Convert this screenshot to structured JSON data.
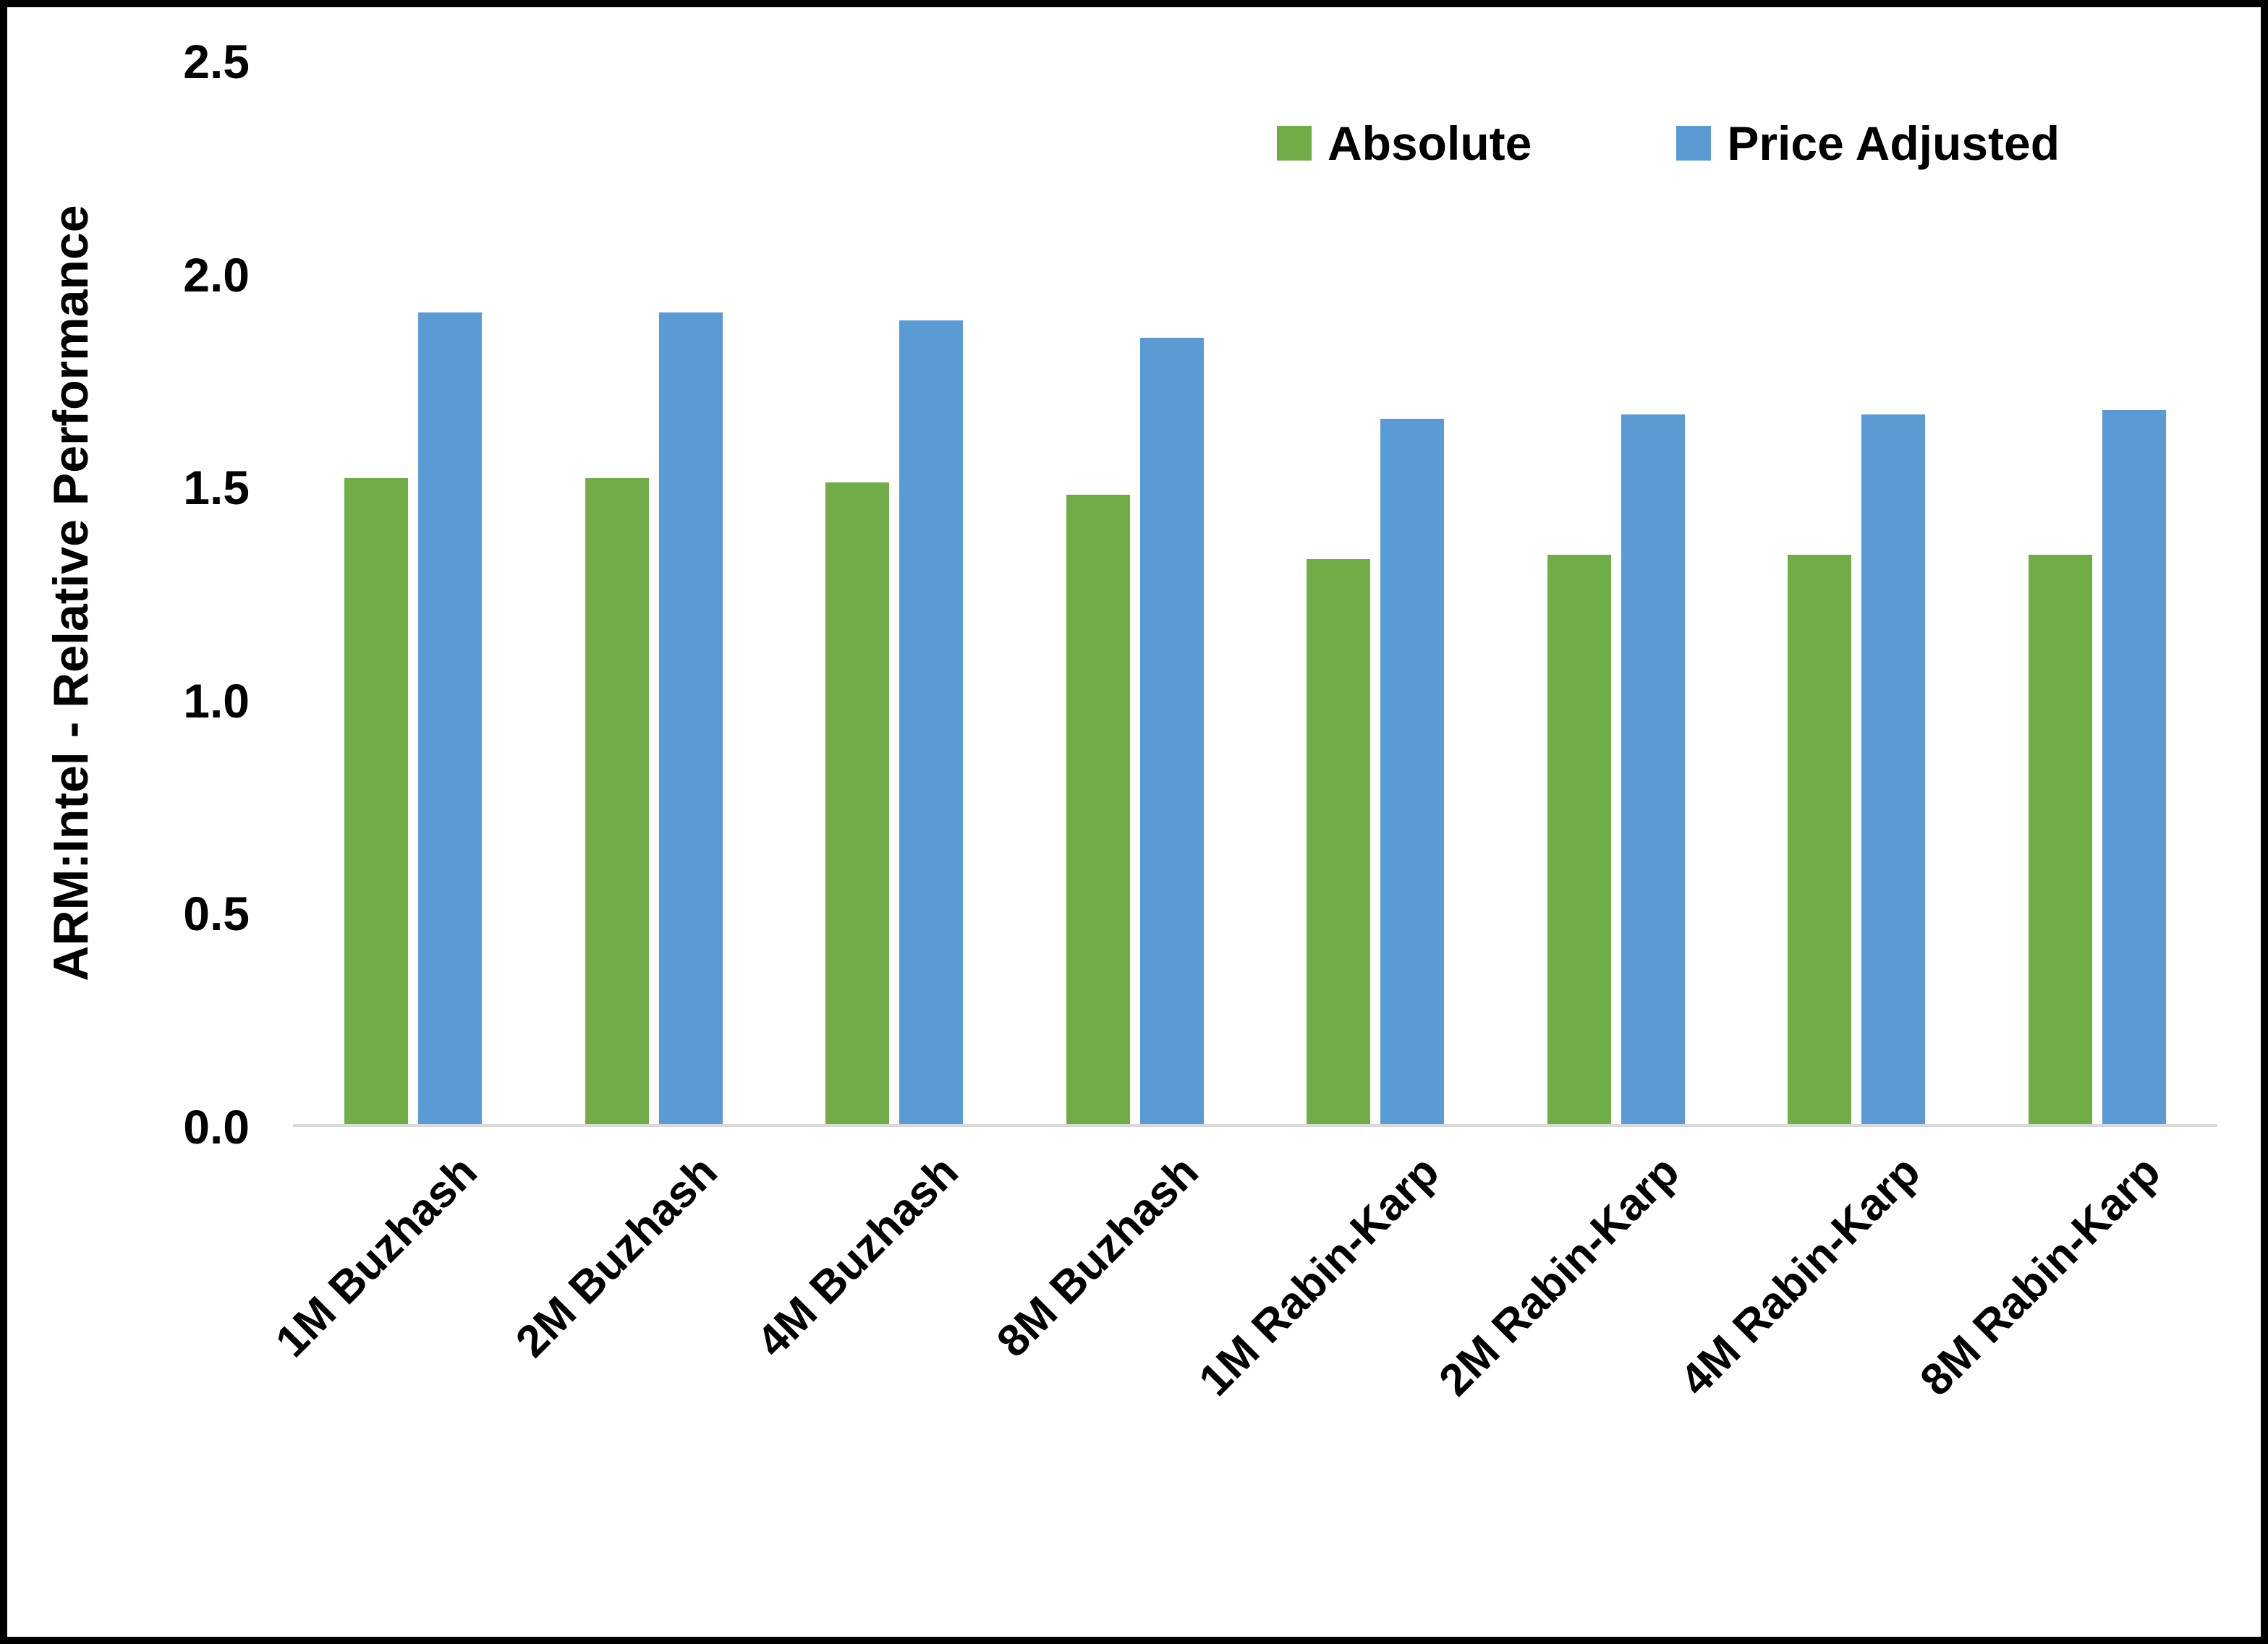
{
  "chart_data": {
    "type": "bar",
    "title": "",
    "xlabel": "",
    "ylabel": "ARM:Intel - Relative Performance",
    "ylim": [
      0,
      2.5
    ],
    "yticks": [
      0.0,
      0.5,
      1.0,
      1.5,
      2.0,
      2.5
    ],
    "ytick_labels": [
      "0.0",
      "0.5",
      "1.0",
      "1.5",
      "2.0",
      "2.5"
    ],
    "grid": false,
    "legend_position": "top-right",
    "categories": [
      "1M Buzhash",
      "2M Buzhash",
      "4M Buzhash",
      "8M Buzhash",
      "1M Rabin-Karp",
      "2M Rabin-Karp",
      "4M Rabin-Karp",
      "8M Rabin-Karp"
    ],
    "series": [
      {
        "name": "Absolute",
        "color": "#70AD47",
        "values": [
          1.52,
          1.52,
          1.51,
          1.48,
          1.33,
          1.34,
          1.34,
          1.34
        ]
      },
      {
        "name": "Price Adjusted",
        "color": "#5B9BD5",
        "values": [
          1.91,
          1.91,
          1.89,
          1.85,
          1.66,
          1.67,
          1.67,
          1.68
        ]
      }
    ],
    "colors": {
      "axis_line": "#d9d9d9",
      "text": "#000000",
      "background": "#ffffff",
      "frame_border": "#000000"
    }
  }
}
